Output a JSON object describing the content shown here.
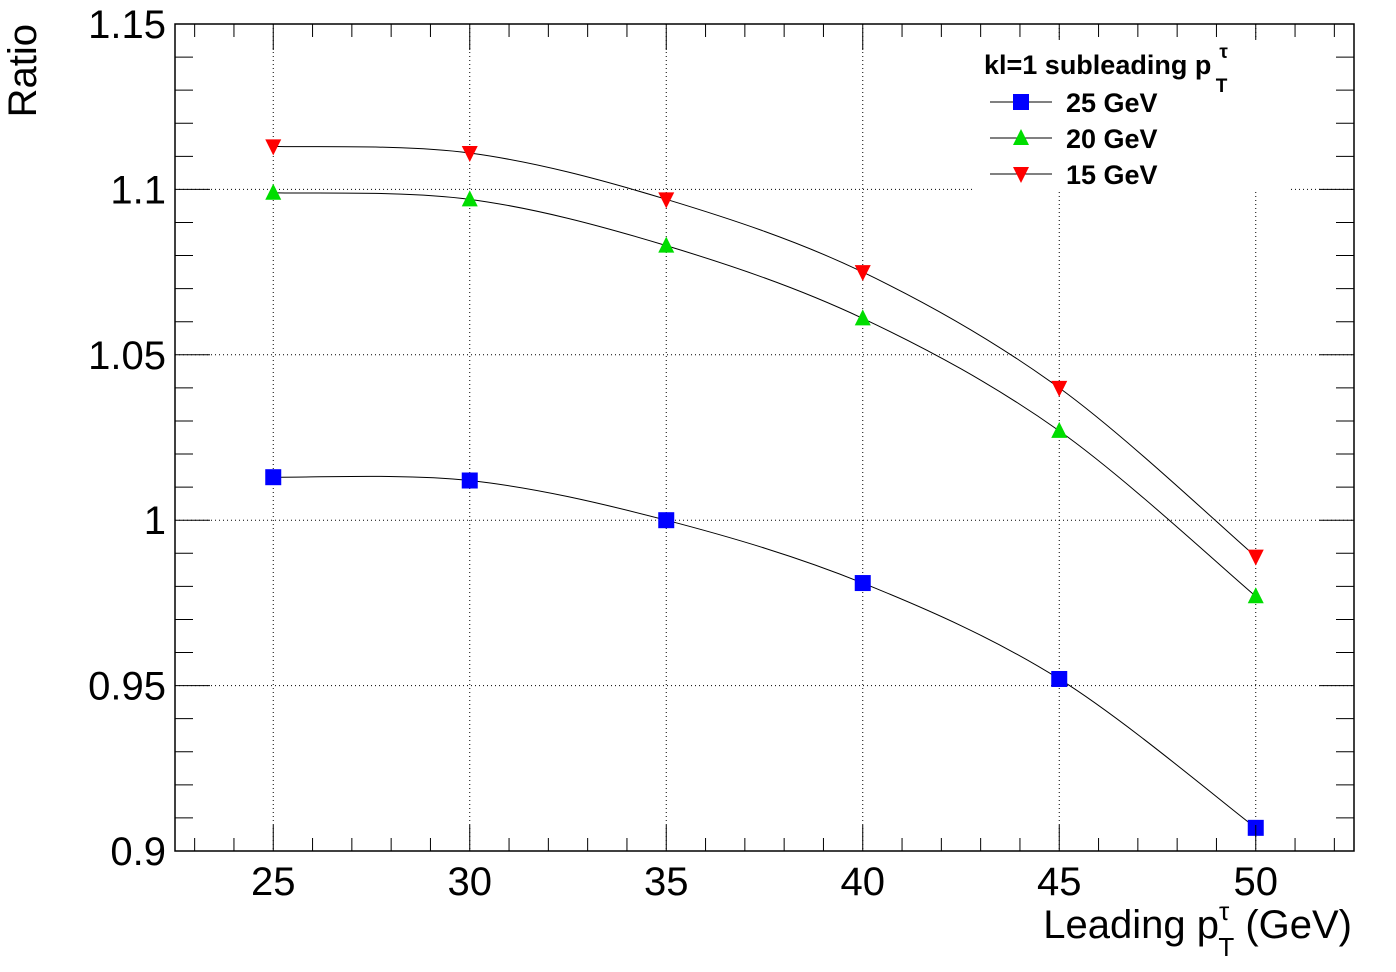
{
  "chart_data": {
    "type": "line",
    "xlabel": {
      "main": "Leading p",
      "sup": "τ",
      "sub": "T",
      "unit": " (GeV)"
    },
    "ylabel": "Ratio",
    "xlim": [
      22.5,
      52.5
    ],
    "ylim": [
      0.9,
      1.15
    ],
    "x_ticks": [
      25,
      30,
      35,
      40,
      45,
      50
    ],
    "y_ticks": [
      0.9,
      0.95,
      1.0,
      1.05,
      1.1,
      1.15
    ],
    "x_tick_labels": [
      "25",
      "30",
      "35",
      "40",
      "45",
      "50"
    ],
    "y_tick_labels": [
      "0.9",
      "0.95",
      "1",
      "1.05",
      "1.1",
      "1.15"
    ],
    "grid": true,
    "legend": {
      "placement": "top-right",
      "title": {
        "main": "kl=1 subleading p",
        "sup": "τ",
        "sub": "T"
      }
    },
    "x": [
      25,
      30,
      35,
      40,
      45,
      50
    ],
    "series": [
      {
        "name": "25 GeV",
        "marker": "square",
        "color": "#0000ff",
        "values": [
          1.013,
          1.012,
          1.0,
          0.981,
          0.952,
          0.907
        ]
      },
      {
        "name": "20 GeV",
        "marker": "triangle-up",
        "color": "#00dd00",
        "values": [
          1.099,
          1.097,
          1.083,
          1.061,
          1.027,
          0.977
        ]
      },
      {
        "name": "15 GeV",
        "marker": "triangle-down",
        "color": "#ff0000",
        "values": [
          1.113,
          1.111,
          1.097,
          1.075,
          1.04,
          0.989
        ]
      }
    ]
  }
}
